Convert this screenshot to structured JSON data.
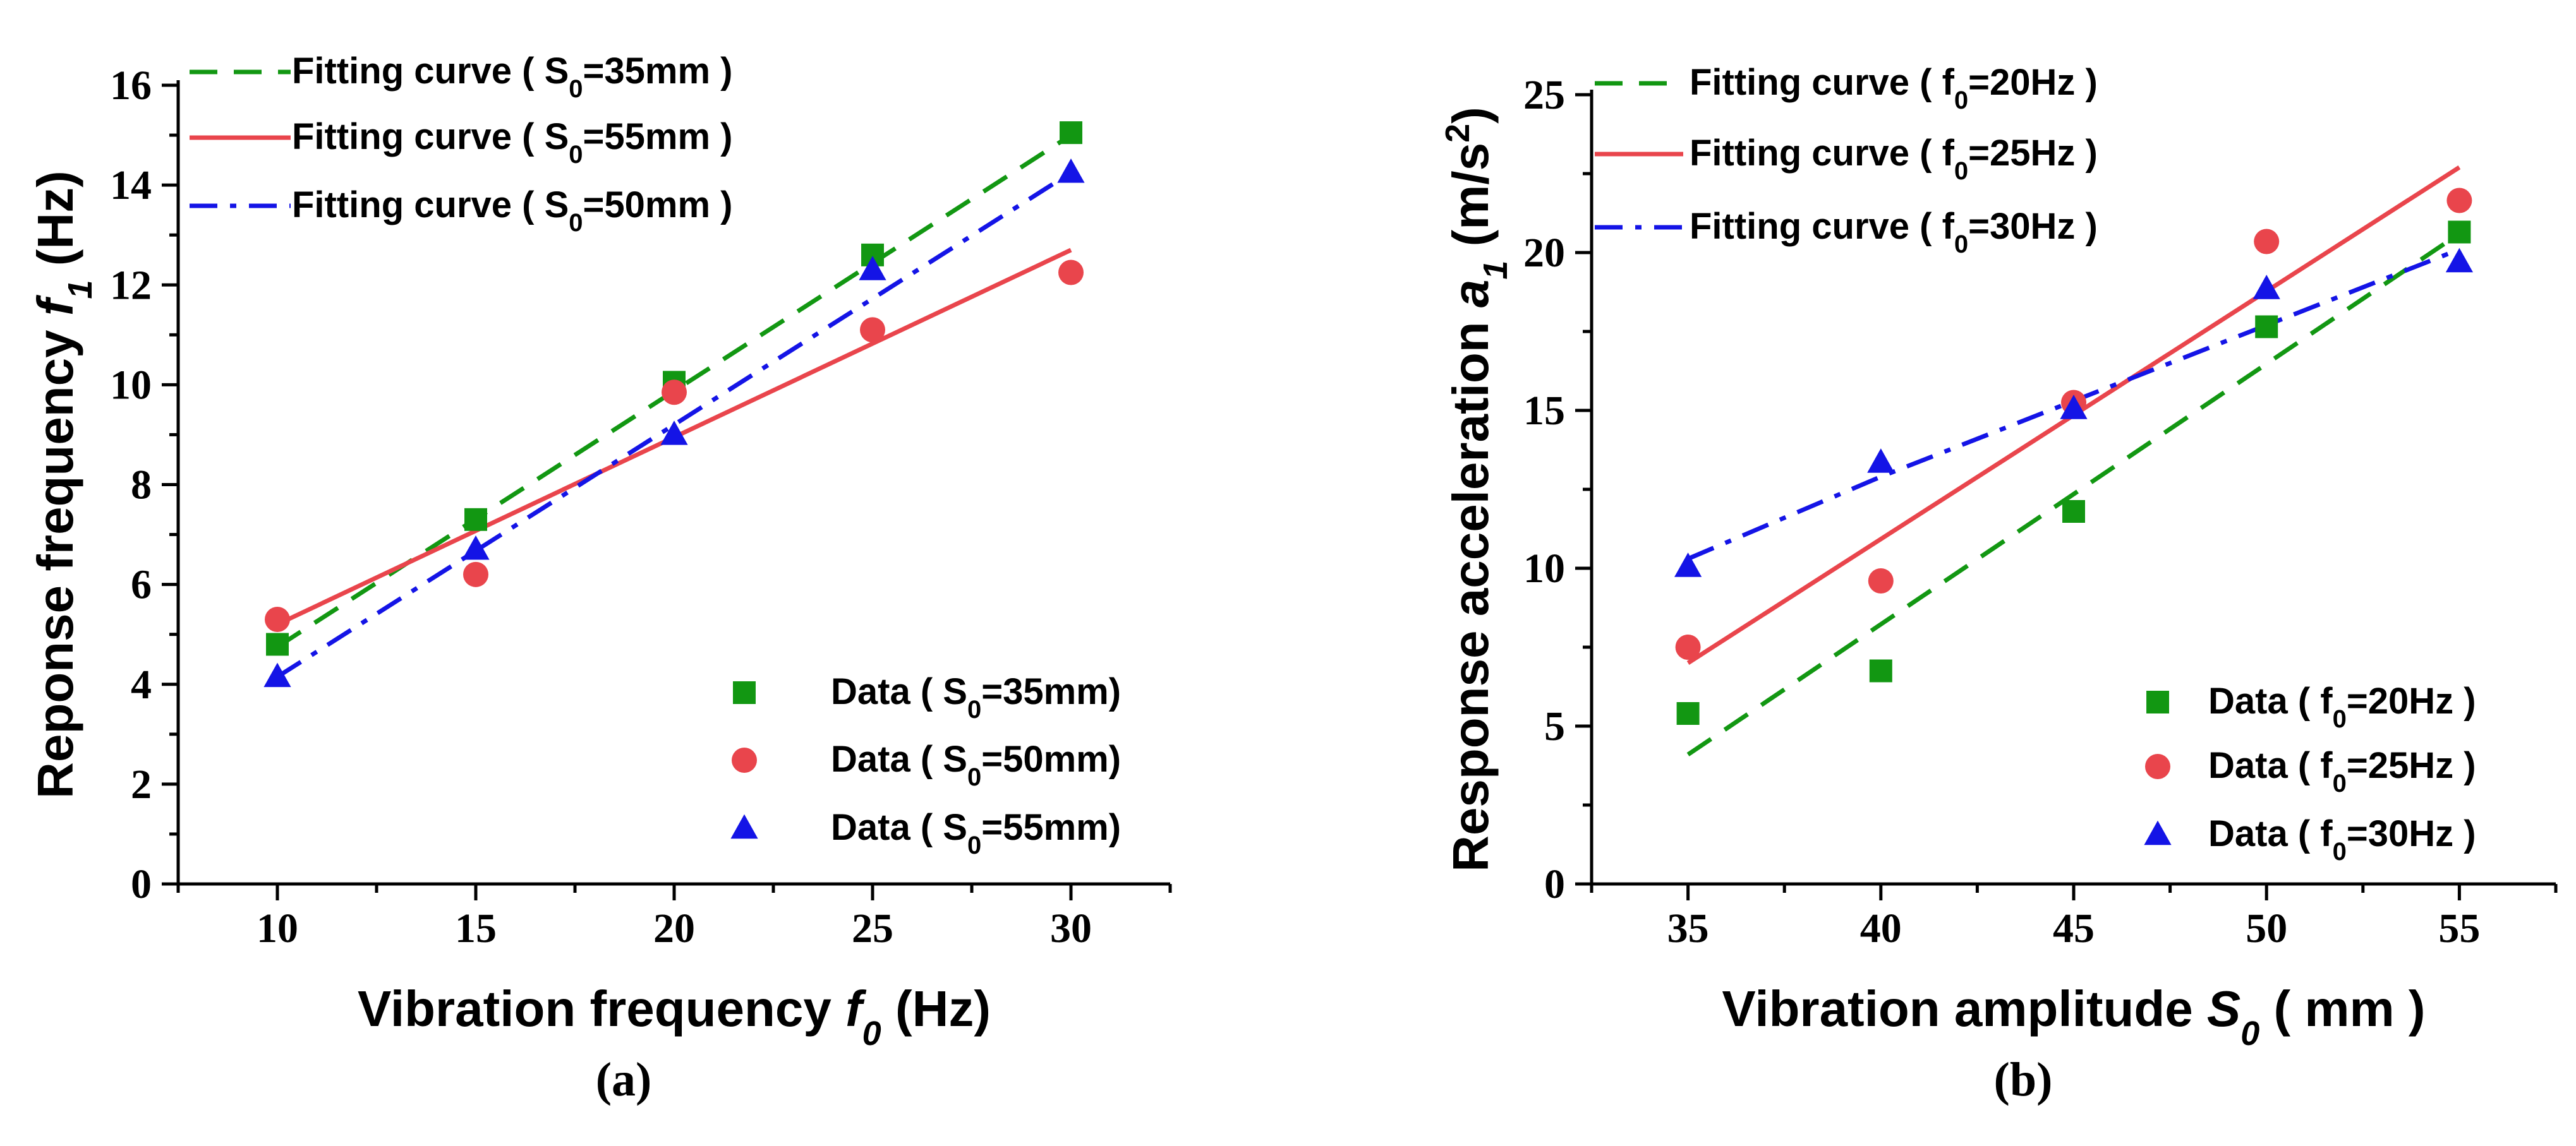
{
  "chart_data": [
    {
      "type": "scatter",
      "panel_label": "(a)",
      "xlabel": {
        "main": "Vibration frequency ",
        "var": "f",
        "sub": "0",
        "unit": " (Hz)"
      },
      "ylabel": {
        "main": "Reponse frequency ",
        "var": "f",
        "sub": "1",
        "unit": " (Hz)"
      },
      "xlim": [
        7.5,
        32.5
      ],
      "ylim": [
        0,
        16
      ],
      "xticks": [
        10,
        15,
        20,
        25,
        30
      ],
      "yticks": [
        0,
        2,
        4,
        6,
        8,
        10,
        12,
        14,
        16
      ],
      "series": [
        {
          "name": "Data ( S0=35mm)",
          "label": {
            "pre": "Data ( S",
            "sub": "0",
            "post": "=35mm)"
          },
          "marker": "square",
          "color": "#129712",
          "x": [
            10,
            15,
            20,
            25,
            30
          ],
          "y": [
            4.8,
            7.3,
            10.05,
            12.6,
            15.05
          ]
        },
        {
          "name": "Data ( S0=50mm)",
          "label": {
            "pre": "Data ( S",
            "sub": "0",
            "post": "=50mm)"
          },
          "marker": "circle",
          "color": "#e9454c",
          "x": [
            10,
            15,
            20,
            25,
            30
          ],
          "y": [
            5.3,
            6.2,
            9.85,
            11.1,
            12.25
          ]
        },
        {
          "name": "Data ( S0=55mm)",
          "label": {
            "pre": "Data ( S",
            "sub": "0",
            "post": "=55mm)"
          },
          "marker": "triangle",
          "color": "#1414e6",
          "x": [
            10,
            15,
            20,
            25,
            30
          ],
          "y": [
            4.15,
            6.7,
            9.0,
            12.3,
            14.25
          ]
        }
      ],
      "fits": [
        {
          "name": "Fitting curve ( S0=35mm )",
          "label": {
            "pre": "Fitting curve ( S",
            "sub": "0",
            "post": "=35mm )"
          },
          "dash": "dash",
          "color": "#129712",
          "x": [
            10,
            30
          ],
          "y": [
            4.75,
            15.0
          ]
        },
        {
          "name": "Fitting curve ( S0=55mm )",
          "label": {
            "pre": "Fitting curve ( S",
            "sub": "0",
            "post": "=55mm )"
          },
          "dash": "solid",
          "color": "#e9454c",
          "x": [
            10,
            30
          ],
          "y": [
            5.2,
            12.7
          ]
        },
        {
          "name": "Fitting curve ( S0=50mm )",
          "label": {
            "pre": "Fitting curve ( S",
            "sub": "0",
            "post": "=50mm )"
          },
          "dash": "dashdot",
          "color": "#1414e6",
          "x": [
            10,
            30
          ],
          "y": [
            4.15,
            14.25
          ]
        }
      ]
    },
    {
      "type": "scatter",
      "panel_label": "(b)",
      "xlabel": {
        "main": "Vibration amplitude ",
        "var": "S",
        "sub": "0",
        "unit": " ( mm )"
      },
      "ylabel": {
        "main": "Response acceleration ",
        "var": "a",
        "sub": "1",
        "unit": " (m/s",
        "sup": "2",
        "unit_end": ")"
      },
      "xlim": [
        32.5,
        57.5
      ],
      "ylim": [
        0,
        25
      ],
      "xticks": [
        35,
        40,
        45,
        50,
        55
      ],
      "yticks": [
        0,
        5,
        10,
        15,
        20,
        25
      ],
      "series": [
        {
          "name": "Data ( f0=20Hz )",
          "label": {
            "pre": "Data ( f",
            "sub": "0",
            "post": "=20Hz )"
          },
          "marker": "square",
          "color": "#129712",
          "x": [
            35,
            40,
            45,
            50,
            55
          ],
          "y": [
            5.4,
            6.75,
            11.8,
            17.65,
            20.65
          ]
        },
        {
          "name": "Data ( f0=25Hz )",
          "label": {
            "pre": "Data ( f",
            "sub": "0",
            "post": "=25Hz )"
          },
          "marker": "circle",
          "color": "#e9454c",
          "x": [
            35,
            40,
            45,
            50,
            55
          ],
          "y": [
            7.5,
            9.6,
            15.25,
            20.35,
            21.65
          ]
        },
        {
          "name": "Data ( f0=30Hz )",
          "label": {
            "pre": "Data ( f",
            "sub": "0",
            "post": "=30Hz )"
          },
          "marker": "triangle",
          "color": "#1414e6",
          "x": [
            35,
            40,
            45,
            50,
            55
          ],
          "y": [
            10.05,
            13.35,
            15.05,
            18.85,
            19.7
          ]
        }
      ],
      "fits": [
        {
          "name": "Fitting curve ( f0=20Hz )",
          "label": {
            "pre": "Fitting curve ( f",
            "sub": "0",
            "post": "=20Hz )"
          },
          "dash": "dash",
          "color": "#129712",
          "x": [
            35,
            55
          ],
          "y": [
            4.1,
            20.6
          ]
        },
        {
          "name": "Fitting curve ( f0=25Hz )",
          "label": {
            "pre": "Fitting curve ( f",
            "sub": "0",
            "post": "=25Hz )"
          },
          "dash": "solid",
          "color": "#e9454c",
          "x": [
            35,
            55
          ],
          "y": [
            7.0,
            22.7
          ]
        },
        {
          "name": "Fitting curve ( f0=30Hz )",
          "label": {
            "pre": "Fitting curve ( f",
            "sub": "0",
            "post": "=30Hz )"
          },
          "dash": "dashdot",
          "color": "#1414e6",
          "x": [
            35,
            40,
            45,
            50,
            55
          ],
          "y": [
            10.3,
            12.9,
            15.3,
            17.7,
            20.1
          ]
        }
      ]
    }
  ]
}
